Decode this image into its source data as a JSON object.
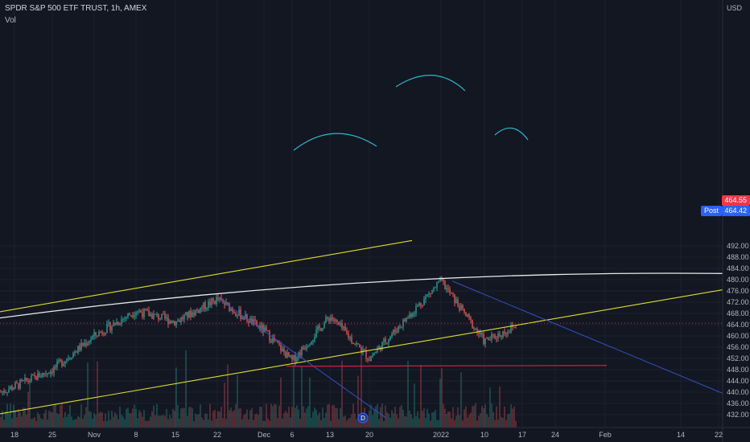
{
  "header": {
    "symbol_line": "SPDR S&P 500 ETF TRUST, 1h, AMEX",
    "indicator": "Vol",
    "currency": "USD"
  },
  "price_tags": {
    "last": "464.55",
    "post_label": "Post",
    "post": "464.42",
    "last_color": "#f23645",
    "post_color": "#2962ff"
  },
  "colors": {
    "background": "#131722",
    "grid": "#1e2230",
    "up": "#26a69a",
    "down": "#ef5350",
    "channel": "#e0e02a",
    "curve": "#e8e8e8",
    "trend": "#3150c8",
    "support": "#d02040",
    "arc": "#2ab8c8"
  },
  "chart_data": {
    "type": "candlestick",
    "title": "SPDR S&P 500 ETF TRUST, 1h, AMEX",
    "ylabel": "USD",
    "ylim": [
      430,
      494
    ],
    "y_ticks": [
      432,
      436,
      440,
      444,
      448,
      452,
      456,
      460,
      464,
      468,
      472,
      476,
      480,
      484,
      488,
      492
    ],
    "x_ticks": [
      "18",
      "25",
      "Nov",
      "8",
      "15",
      "22",
      "Dec",
      "6",
      "13",
      "20",
      "2022",
      "10",
      "17",
      "24",
      "Feb",
      "14",
      "22"
    ],
    "grid": true,
    "price_path": [
      [
        "18",
        442
      ],
      [
        "25",
        448
      ],
      [
        "Nov",
        460
      ],
      [
        "8",
        469
      ],
      [
        "15",
        465
      ],
      [
        "22",
        473
      ],
      [
        "Dec",
        462
      ],
      [
        "6",
        451
      ],
      [
        "13",
        467
      ],
      [
        "20",
        452
      ],
      [
        "2022",
        479.5
      ],
      [
        "10",
        458
      ],
      [
        "17",
        464.5
      ]
    ],
    "drawings": [
      {
        "name": "upper-channel-line",
        "from": [
          "<Oct 18",
          468.6
        ],
        "to": [
          "Nov 24",
          493.9
        ]
      },
      {
        "name": "lower-channel-line",
        "from": [
          "<Oct 18",
          432.3
        ],
        "to": [
          "Feb 22",
          476.4
        ]
      },
      {
        "name": "resistance-curve",
        "from": [
          "<Oct 18",
          466.4
        ],
        "to": [
          "Feb 22",
          482.2
        ]
      },
      {
        "name": "trend-line-1",
        "from": [
          "Nov 22",
          473.6
        ],
        "to": [
          "Dec 20",
          430.8
        ]
      },
      {
        "name": "trend-line-2",
        "from": [
          "Jan 4",
          479.5
        ],
        "to": [
          "Feb 22",
          439.6
        ]
      },
      {
        "name": "support-line",
        "from": [
          "Dec 6",
          449.2
        ],
        "to": [
          "Jan 31",
          449.5
        ]
      }
    ],
    "last_price": 464.55,
    "post_price": 464.42
  }
}
